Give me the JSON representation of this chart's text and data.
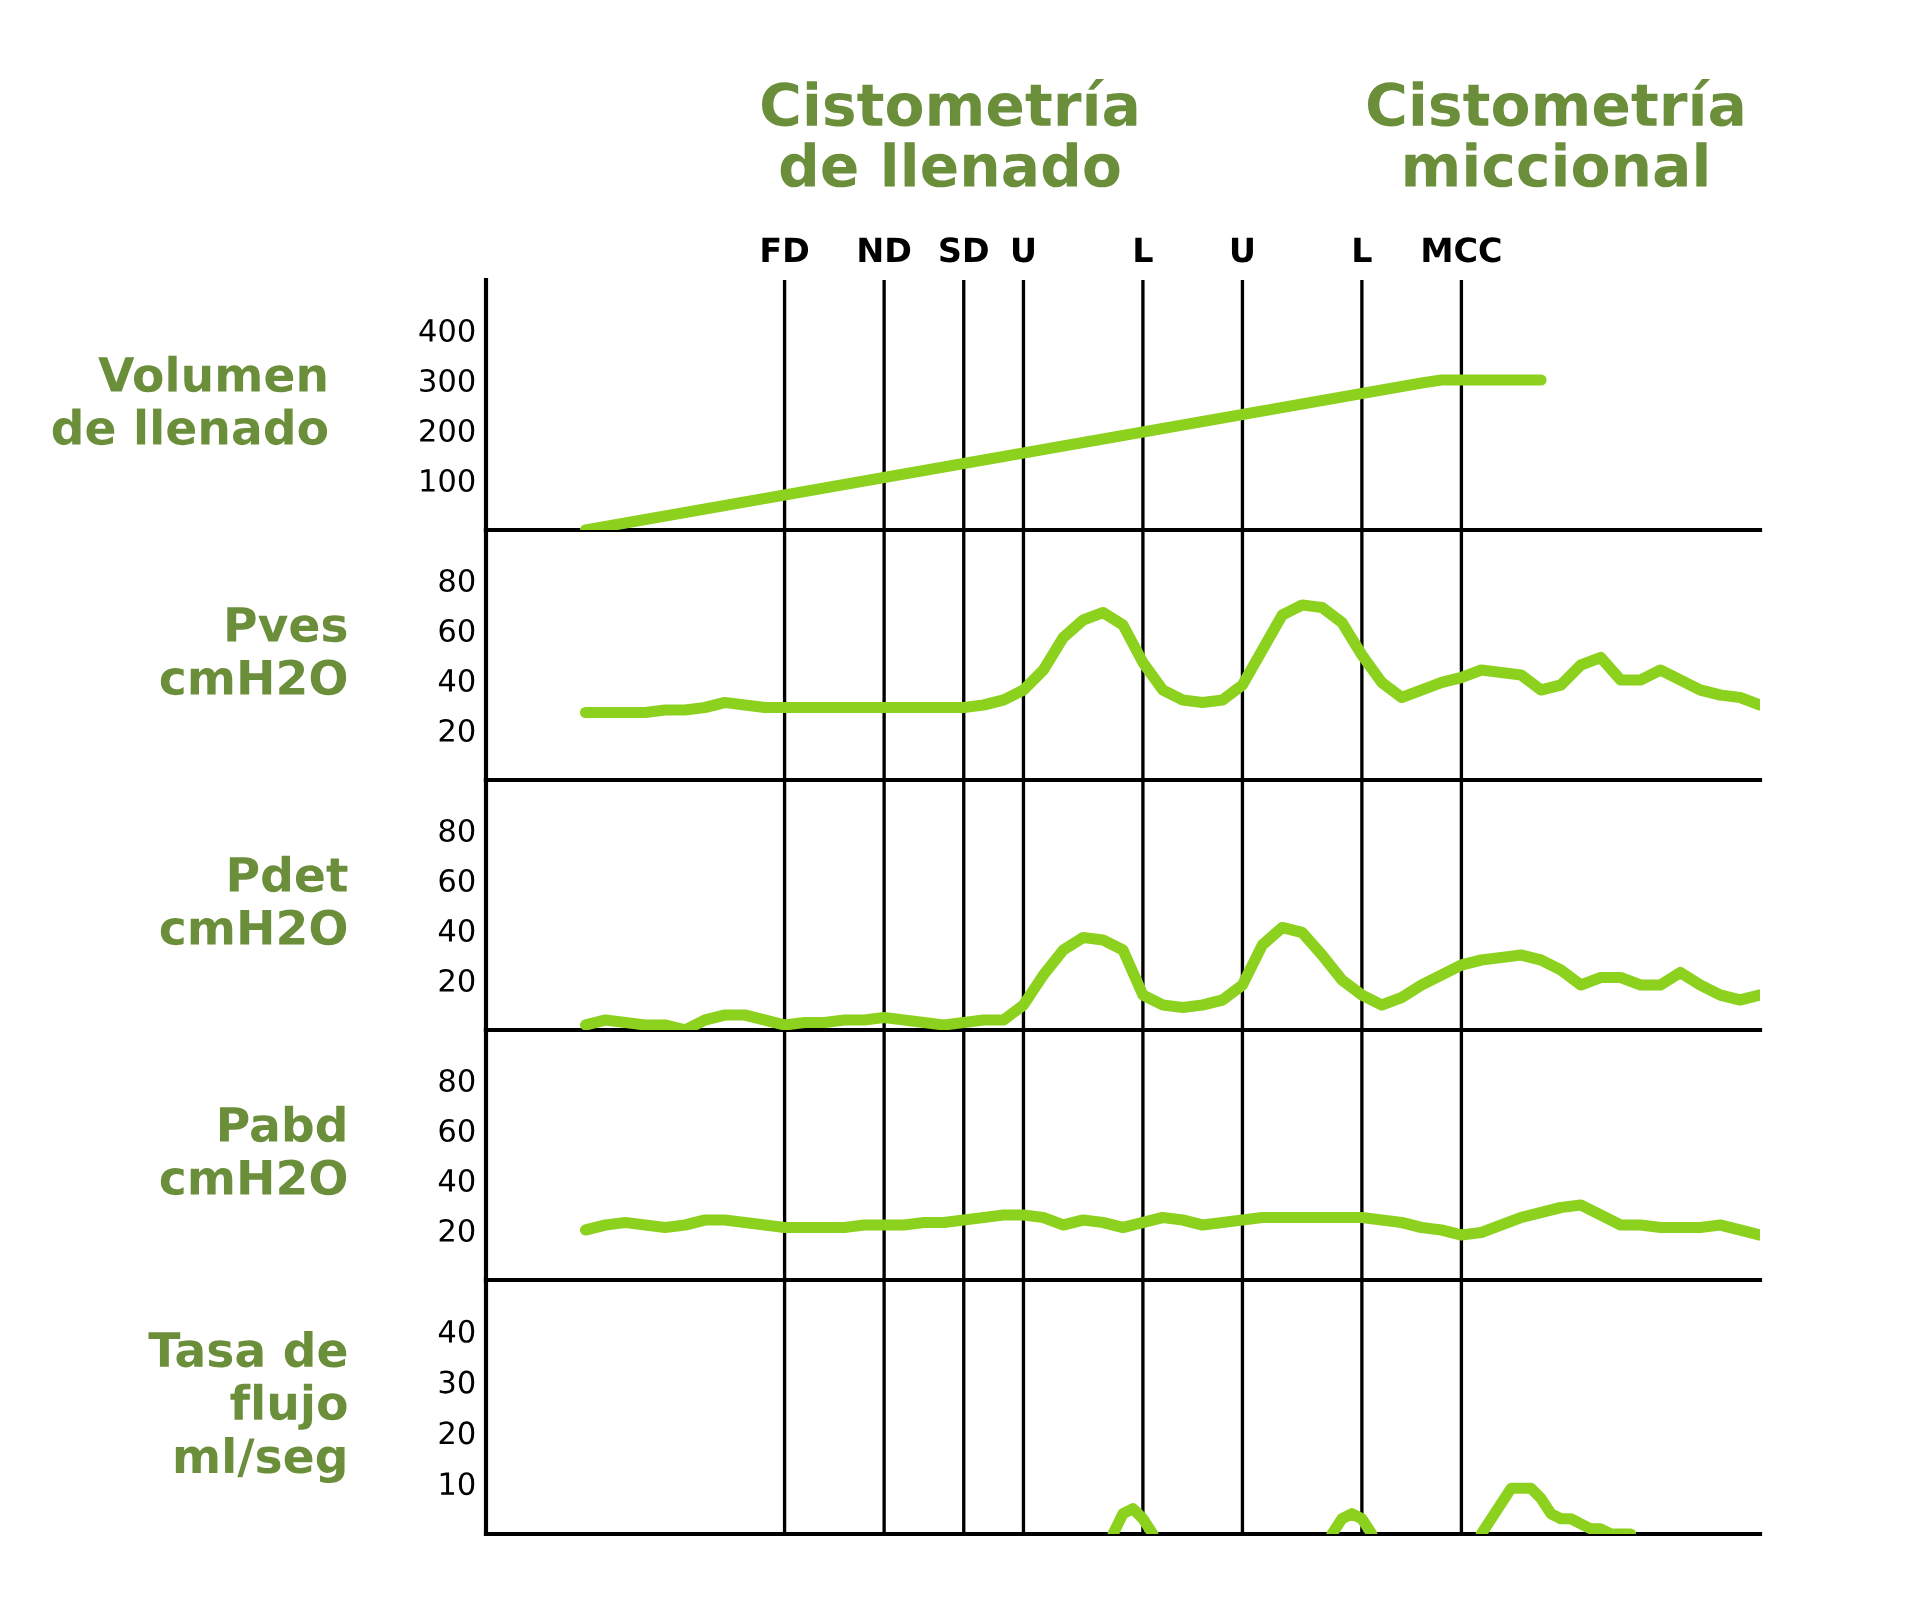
{
  "chart_data": [
    {
      "type": "line",
      "ylabel": "Volumen\nde llenado",
      "ylim": [
        0,
        500
      ],
      "yticks": [
        100,
        200,
        300,
        400
      ],
      "grid": "x",
      "annotations": [
        "Cistometría\nde llenado",
        "Cistometría\nmiccional"
      ],
      "categories": [
        null,
        null,
        null,
        null,
        null,
        null,
        null,
        null,
        null,
        null,
        null,
        null,
        null,
        null,
        null,
        "FD",
        null,
        null,
        null,
        null,
        "ND",
        null,
        null,
        null,
        "SD",
        null,
        null,
        "U",
        null,
        null,
        null,
        null,
        null,
        "L",
        null,
        null,
        null,
        null,
        "U",
        null,
        null,
        null,
        null,
        null,
        "L",
        null,
        null,
        null,
        null,
        "MCC",
        null,
        null,
        null,
        null,
        null,
        null,
        null,
        null,
        null,
        null,
        null,
        null,
        null,
        null,
        null
      ],
      "series": [
        {
          "color": "#8cd11e",
          "values": [
            null,
            null,
            null,
            null,
            null,
            0,
            7,
            14,
            21,
            28,
            35,
            42,
            49,
            56,
            63,
            70,
            77,
            84,
            91,
            98,
            105,
            112,
            119,
            126,
            133,
            140,
            147,
            154,
            161,
            168,
            175,
            182,
            189,
            196,
            203,
            210,
            217,
            224,
            231,
            238,
            245,
            252,
            259,
            266,
            273,
            280,
            287,
            294,
            300,
            300,
            300,
            300,
            300,
            300,
            null,
            null,
            null,
            null,
            null,
            null,
            null,
            null,
            null,
            null,
            null
          ]
        }
      ]
    },
    {
      "type": "line",
      "ylabel": "Pves\ncmH2O",
      "ylim": [
        0,
        100
      ],
      "yticks": [
        20,
        40,
        60,
        80
      ],
      "tick_labels": "y",
      "grid": "x",
      "categories": [
        null,
        null,
        null,
        null,
        null,
        null,
        null,
        null,
        null,
        null,
        null,
        null,
        null,
        null,
        null,
        null,
        null,
        null,
        null,
        null,
        null,
        null,
        null,
        null,
        null,
        null,
        null,
        null,
        null,
        null,
        null,
        null,
        null,
        null,
        null,
        null,
        null,
        null,
        null,
        null,
        null,
        null,
        null,
        null,
        null,
        null,
        null,
        null,
        null,
        null,
        null,
        null,
        null,
        null,
        null,
        null,
        null,
        null,
        null,
        null,
        null,
        null,
        null,
        null,
        null
      ],
      "series": [
        {
          "color": "#8cd11e",
          "values": [
            null,
            null,
            null,
            null,
            null,
            27,
            27,
            27,
            27,
            28,
            28,
            29,
            31,
            30,
            29,
            29,
            29,
            29,
            29,
            29,
            29,
            29,
            29,
            29,
            29,
            30,
            32,
            36,
            44,
            57,
            64,
            67,
            62,
            47,
            36,
            32,
            31,
            32,
            38,
            52,
            66,
            70,
            69,
            63,
            50,
            39,
            33,
            36,
            39,
            41,
            44,
            43,
            42,
            36,
            38,
            46,
            49,
            40,
            40,
            44,
            40,
            36,
            34,
            33,
            30
          ]
        }
      ]
    },
    {
      "type": "line",
      "ylabel": "Pdet\ncmH2O",
      "ylim": [
        0,
        100
      ],
      "yticks": [
        20,
        40,
        60,
        80
      ],
      "tick_labels": "y",
      "grid": "x",
      "categories": [
        null,
        null,
        null,
        null,
        null,
        null,
        null,
        null,
        null,
        null,
        null,
        null,
        null,
        null,
        null,
        null,
        null,
        null,
        null,
        null,
        null,
        null,
        null,
        null,
        null,
        null,
        null,
        null,
        null,
        null,
        null,
        null,
        null,
        null,
        null,
        null,
        null,
        null,
        null,
        null,
        null,
        null,
        null,
        null,
        null,
        null,
        null,
        null,
        null,
        null,
        null,
        null,
        null,
        null,
        null,
        null,
        null,
        null,
        null,
        null,
        null,
        null,
        null,
        null,
        null
      ],
      "series": [
        {
          "color": "#8cd11e",
          "values": [
            null,
            null,
            null,
            null,
            null,
            2,
            4,
            3,
            2,
            2,
            0,
            4,
            6,
            6,
            4,
            2,
            3,
            3,
            4,
            4,
            5,
            4,
            3,
            2,
            3,
            4,
            4,
            10,
            22,
            32,
            37,
            36,
            32,
            14,
            10,
            9,
            10,
            12,
            18,
            34,
            41,
            39,
            30,
            20,
            14,
            10,
            13,
            18,
            22,
            26,
            28,
            29,
            30,
            28,
            24,
            18,
            21,
            21,
            18,
            18,
            23,
            18,
            14,
            12,
            14
          ]
        }
      ]
    },
    {
      "type": "line",
      "ylabel": "Pabd\ncmH2O",
      "ylim": [
        0,
        100
      ],
      "yticks": [
        20,
        40,
        60,
        80
      ],
      "tick_labels": "y",
      "grid": "x",
      "categories": [
        null,
        null,
        null,
        null,
        null,
        null,
        null,
        null,
        null,
        null,
        null,
        null,
        null,
        null,
        null,
        null,
        null,
        null,
        null,
        null,
        null,
        null,
        null,
        null,
        null,
        null,
        null,
        null,
        null,
        null,
        null,
        null,
        null,
        null,
        null,
        null,
        null,
        null,
        null,
        null,
        null,
        null,
        null,
        null,
        null,
        null,
        null,
        null,
        null,
        null,
        null,
        null,
        null,
        null,
        null,
        null,
        null,
        null,
        null,
        null,
        null,
        null,
        null,
        null,
        null
      ],
      "series": [
        {
          "color": "#8cd11e",
          "values": [
            null,
            null,
            null,
            null,
            null,
            20,
            22,
            23,
            22,
            21,
            22,
            24,
            24,
            23,
            22,
            21,
            21,
            21,
            21,
            22,
            22,
            22,
            23,
            23,
            24,
            25,
            26,
            26,
            25,
            22,
            24,
            23,
            21,
            23,
            25,
            24,
            22,
            23,
            24,
            25,
            25,
            25,
            25,
            25,
            25,
            24,
            23,
            21,
            20,
            18,
            19,
            22,
            25,
            27,
            29,
            30,
            26,
            22,
            22,
            21,
            21,
            21,
            22,
            20,
            18
          ]
        }
      ]
    },
    {
      "type": "line",
      "ylabel": "Tasa de\nflujo\nml/seg",
      "ylim": [
        0,
        50
      ],
      "yticks": [
        10,
        20,
        30,
        40
      ],
      "tick_labels": "y",
      "grid": "x",
      "categories": [
        null,
        null,
        null,
        null,
        null,
        null,
        null,
        null,
        null,
        null,
        null,
        null,
        null,
        null,
        null,
        null,
        null,
        null,
        null,
        null,
        null,
        null,
        null,
        null,
        null,
        null,
        null,
        null,
        null,
        null,
        null,
        null,
        null,
        null,
        null,
        null,
        null,
        null,
        null,
        null,
        null,
        null,
        null,
        null,
        null,
        null,
        null,
        null,
        null,
        null,
        null,
        null,
        null,
        null,
        null,
        null,
        null,
        null,
        null,
        null,
        null,
        null,
        null,
        null,
        null,
        null,
        null,
        null,
        null,
        null,
        null,
        null,
        null,
        null,
        null,
        null,
        null,
        null,
        null,
        null,
        null,
        null,
        null,
        null,
        null,
        null,
        null,
        null,
        null,
        null,
        null,
        null,
        null,
        null,
        null,
        null,
        null,
        null,
        null,
        null,
        null,
        null,
        null,
        null,
        null,
        null,
        null,
        null,
        null,
        null,
        null,
        null,
        null,
        null,
        null,
        null,
        null,
        null,
        null,
        null,
        null,
        null,
        null,
        null,
        null,
        null,
        null,
        null,
        null
      ],
      "series": [
        {
          "color": "#8cd11e",
          "values": [
            null,
            null,
            null,
            null,
            null,
            null,
            null,
            null,
            null,
            null,
            null,
            null,
            null,
            null,
            null,
            null,
            null,
            null,
            null,
            null,
            null,
            null,
            null,
            null,
            null,
            null,
            null,
            null,
            null,
            null,
            null,
            null,
            null,
            null,
            null,
            null,
            null,
            null,
            null,
            null,
            null,
            null,
            null,
            null,
            null,
            null,
            null,
            null,
            null,
            null,
            null,
            null,
            null,
            null,
            null,
            null,
            null,
            null,
            null,
            null,
            null,
            null,
            null,
            0,
            4,
            5,
            3,
            0,
            null,
            null,
            null,
            null,
            null,
            null,
            null,
            null,
            null,
            null,
            null,
            null,
            null,
            null,
            null,
            null,
            null,
            0,
            3,
            4,
            3,
            0,
            null,
            null,
            null,
            null,
            null,
            null,
            null,
            null,
            null,
            null,
            0,
            3,
            6,
            9,
            9,
            9,
            7,
            4,
            3,
            3,
            2,
            1,
            1,
            0,
            0,
            0,
            null,
            null,
            null,
            null,
            null,
            null,
            null,
            null,
            null,
            null,
            null,
            null,
            null
          ]
        }
      ]
    }
  ]
}
